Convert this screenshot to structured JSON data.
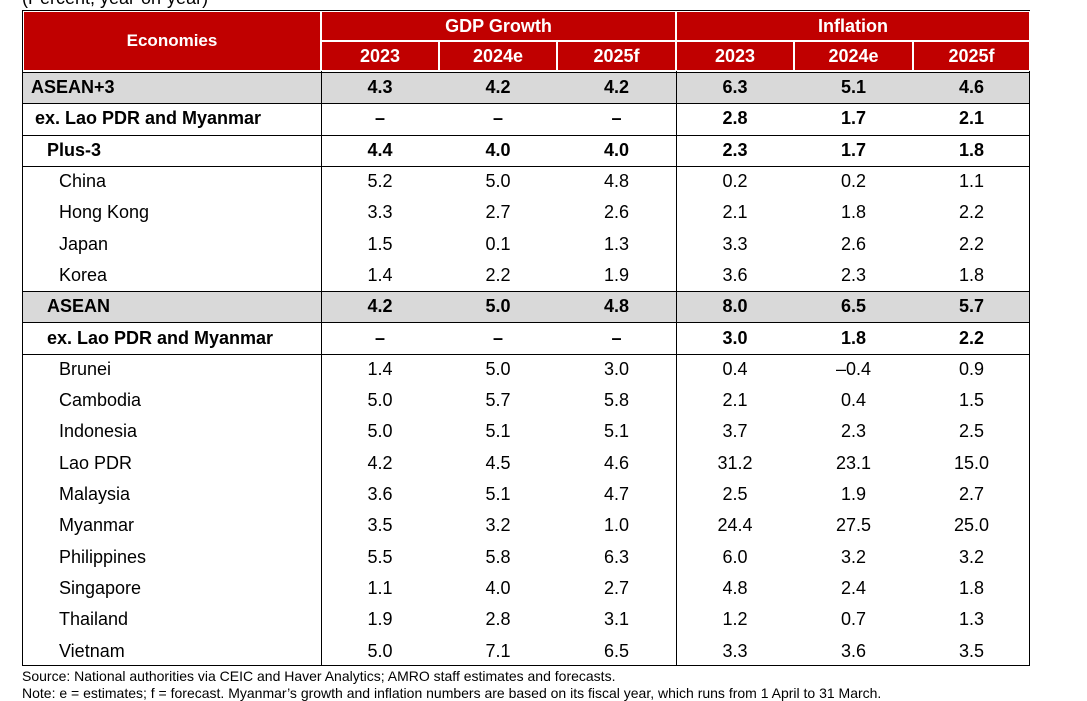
{
  "caption": "(Percent, year-on-year)",
  "table": {
    "header": {
      "economies": "Economies",
      "groups": [
        "GDP Growth",
        "Inflation"
      ],
      "years": [
        "2023",
        "2024e",
        "2025f",
        "2023",
        "2024e",
        "2025f"
      ]
    },
    "rows": [
      [
        "ASEAN+3",
        "4.3",
        "4.2",
        "4.2",
        "6.3",
        "5.1",
        "4.6"
      ],
      [
        "ex. Lao PDR and Myanmar",
        "–",
        "–",
        "–",
        "2.8",
        "1.7",
        "2.1"
      ],
      [
        "Plus-3",
        "4.4",
        "4.0",
        "4.0",
        "2.3",
        "1.7",
        "1.8"
      ],
      [
        "China",
        "5.2",
        "5.0",
        "4.8",
        "0.2",
        "0.2",
        "1.1"
      ],
      [
        "Hong Kong",
        "3.3",
        "2.7",
        "2.6",
        "2.1",
        "1.8",
        "2.2"
      ],
      [
        "Japan",
        "1.5",
        "0.1",
        "1.3",
        "3.3",
        "2.6",
        "2.2"
      ],
      [
        "Korea",
        "1.4",
        "2.2",
        "1.9",
        "3.6",
        "2.3",
        "1.8"
      ],
      [
        "ASEAN",
        "4.2",
        "5.0",
        "4.8",
        "8.0",
        "6.5",
        "5.7"
      ],
      [
        "ex. Lao PDR and Myanmar",
        "–",
        "–",
        "–",
        "3.0",
        "1.8",
        "2.2"
      ],
      [
        "Brunei",
        "1.4",
        "5.0",
        "3.0",
        "0.4",
        "–0.4",
        "0.9"
      ],
      [
        "Cambodia",
        "5.0",
        "5.7",
        "5.8",
        "2.1",
        "0.4",
        "1.5"
      ],
      [
        "Indonesia",
        "5.0",
        "5.1",
        "5.1",
        "3.7",
        "2.3",
        "2.5"
      ],
      [
        "Lao PDR",
        "4.2",
        "4.5",
        "4.6",
        "31.2",
        "23.1",
        "15.0"
      ],
      [
        "Malaysia",
        "3.6",
        "5.1",
        "4.7",
        "2.5",
        "1.9",
        "2.7"
      ],
      [
        "Myanmar",
        "3.5",
        "3.2",
        "1.0",
        "24.4",
        "27.5",
        "25.0"
      ],
      [
        "Philippines",
        "5.5",
        "5.8",
        "6.3",
        "6.0",
        "3.2",
        "3.2"
      ],
      [
        "Singapore",
        "1.1",
        "4.0",
        "2.7",
        "4.8",
        "2.4",
        "1.8"
      ],
      [
        "Thailand",
        "1.9",
        "2.8",
        "3.1",
        "1.2",
        "0.7",
        "1.3"
      ],
      [
        "Vietnam",
        "5.0",
        "7.1",
        "6.5",
        "3.3",
        "3.6",
        "3.5"
      ]
    ]
  },
  "source": "Source: National authorities via CEIC and Haver Analytics; AMRO staff estimates and forecasts.",
  "note": "Note: e = estimates; f = forecast. Myanmar’s growth and inflation numbers are based on its fiscal year, which runs from 1 April to 31 March."
}
